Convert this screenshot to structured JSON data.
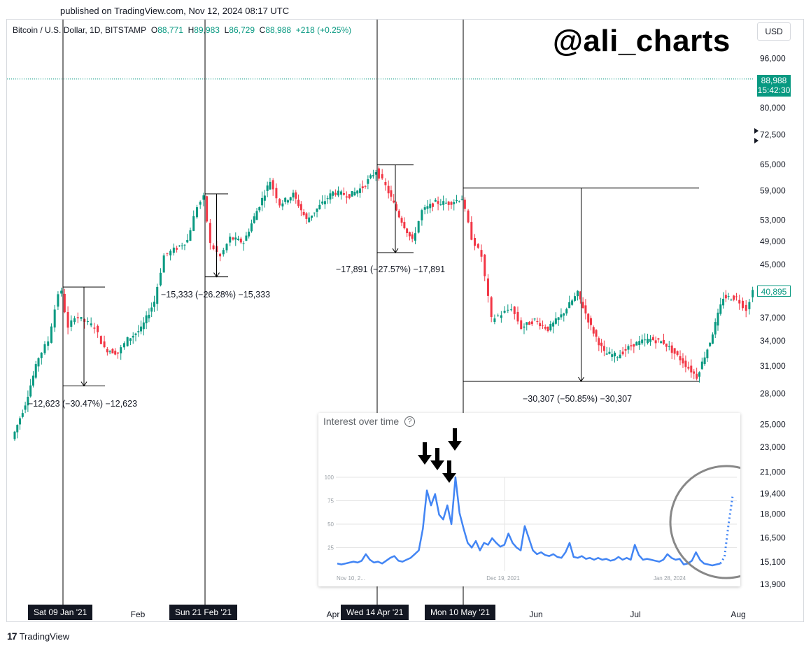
{
  "header": {
    "published": "published on TradingView.com, Nov 12, 2024 08:17 UTC",
    "symbol": "Bitcoin / U.S. Dollar, 1D, BITSTAMP",
    "o_label": "O",
    "o_val": "88,771",
    "h_label": "H",
    "h_val": "89,983",
    "l_label": "L",
    "l_val": "86,729",
    "c_label": "C",
    "c_val": "88,988",
    "change": "+218 (+0.25%)"
  },
  "watermark": "@ali_charts",
  "currency_button": "USD",
  "price_tag": {
    "price": "88,988",
    "time": "15:42:30"
  },
  "last_price_tag": "40,895",
  "date_tags": [
    "Sat 09 Jan '21",
    "Sun 21 Feb '21",
    "Wed 14 Apr '21",
    "Mon 10 May '21"
  ],
  "footer": {
    "logo_text": "TradingView"
  },
  "colors": {
    "up": "#089981",
    "down": "#f23645",
    "trends_line": "#4285f4"
  },
  "chart_data": [
    {
      "type": "candlestick",
      "title": "Bitcoin / U.S. Dollar, 1D, BITSTAMP",
      "y_ticks": [
        "96,000",
        "80,000",
        "72,500",
        "65,000",
        "59,000",
        "53,000",
        "49,000",
        "45,000",
        "37,000",
        "34,000",
        "31,000",
        "28,000",
        "25,000",
        "23,000",
        "21,000",
        "19,400",
        "18,000",
        "16,500",
        "15,100",
        "13,900"
      ],
      "y_tick_values": [
        96000,
        80000,
        72500,
        65000,
        59000,
        53000,
        49000,
        45000,
        37000,
        34000,
        31000,
        28000,
        25000,
        23000,
        21000,
        19400,
        18000,
        16500,
        15100,
        13900
      ],
      "x_ticks": [
        "Feb",
        "Apr",
        "Jun",
        "Jul",
        "Aug"
      ],
      "scale": "log",
      "series_close": [
        {
          "date": "2020-12-25",
          "close": 23700
        },
        {
          "date": "2020-12-29",
          "close": 27000
        },
        {
          "date": "2021-01-02",
          "close": 32000
        },
        {
          "date": "2021-01-05",
          "close": 34000
        },
        {
          "date": "2021-01-08",
          "close": 40500
        },
        {
          "date": "2021-01-09",
          "close": 40600
        },
        {
          "date": "2021-01-11",
          "close": 35500
        },
        {
          "date": "2021-01-13",
          "close": 37300
        },
        {
          "date": "2021-01-16",
          "close": 36500
        },
        {
          "date": "2021-01-19",
          "close": 35800
        },
        {
          "date": "2021-01-22",
          "close": 33000
        },
        {
          "date": "2021-01-26",
          "close": 32500
        },
        {
          "date": "2021-01-29",
          "close": 34200
        },
        {
          "date": "2021-02-02",
          "close": 35500
        },
        {
          "date": "2021-02-06",
          "close": 39300
        },
        {
          "date": "2021-02-09",
          "close": 46500
        },
        {
          "date": "2021-02-12",
          "close": 47500
        },
        {
          "date": "2021-02-16",
          "close": 49200
        },
        {
          "date": "2021-02-19",
          "close": 55800
        },
        {
          "date": "2021-02-21",
          "close": 57500
        },
        {
          "date": "2021-02-23",
          "close": 48500
        },
        {
          "date": "2021-02-26",
          "close": 46300
        },
        {
          "date": "2021-03-01",
          "close": 49600
        },
        {
          "date": "2021-03-05",
          "close": 48800
        },
        {
          "date": "2021-03-09",
          "close": 54800
        },
        {
          "date": "2021-03-13",
          "close": 61200
        },
        {
          "date": "2021-03-16",
          "close": 56200
        },
        {
          "date": "2021-03-20",
          "close": 58200
        },
        {
          "date": "2021-03-24",
          "close": 53000
        },
        {
          "date": "2021-03-28",
          "close": 55800
        },
        {
          "date": "2021-04-01",
          "close": 58700
        },
        {
          "date": "2021-04-06",
          "close": 58000
        },
        {
          "date": "2021-04-10",
          "close": 59800
        },
        {
          "date": "2021-04-14",
          "close": 63500
        },
        {
          "date": "2021-04-17",
          "close": 60000
        },
        {
          "date": "2021-04-21",
          "close": 53800
        },
        {
          "date": "2021-04-25",
          "close": 49000
        },
        {
          "date": "2021-04-28",
          "close": 54800
        },
        {
          "date": "2021-05-02",
          "close": 56500
        },
        {
          "date": "2021-05-06",
          "close": 56400
        },
        {
          "date": "2021-05-10",
          "close": 57400
        },
        {
          "date": "2021-05-13",
          "close": 49700
        },
        {
          "date": "2021-05-16",
          "close": 46400
        },
        {
          "date": "2021-05-19",
          "close": 36800
        },
        {
          "date": "2021-05-22",
          "close": 37500
        },
        {
          "date": "2021-05-25",
          "close": 38400
        },
        {
          "date": "2021-05-28",
          "close": 35700
        },
        {
          "date": "2021-06-01",
          "close": 36700
        },
        {
          "date": "2021-06-05",
          "close": 35500
        },
        {
          "date": "2021-06-09",
          "close": 37300
        },
        {
          "date": "2021-06-14",
          "close": 40500
        },
        {
          "date": "2021-06-18",
          "close": 35800
        },
        {
          "date": "2021-06-22",
          "close": 32500
        },
        {
          "date": "2021-06-26",
          "close": 32200
        },
        {
          "date": "2021-07-01",
          "close": 33600
        },
        {
          "date": "2021-07-06",
          "close": 34200
        },
        {
          "date": "2021-07-10",
          "close": 33800
        },
        {
          "date": "2021-07-15",
          "close": 31800
        },
        {
          "date": "2021-07-20",
          "close": 29800
        },
        {
          "date": "2021-07-24",
          "close": 33900
        },
        {
          "date": "2021-07-28",
          "close": 39900
        },
        {
          "date": "2021-08-01",
          "close": 39800
        },
        {
          "date": "2021-08-04",
          "close": 38200
        },
        {
          "date": "2021-08-06",
          "close": 40895
        }
      ],
      "drawdowns": [
        {
          "label": "−12,623 (−30.47%) −12,623",
          "from_date": "2021-01-09",
          "from_price": 41434,
          "to_price": 28811
        },
        {
          "label": "−15,333 (−26.28%) −15,333",
          "from_date": "2021-02-21",
          "from_price": 58350,
          "to_price": 43017
        },
        {
          "label": "−17,891 (−27.57%) −17,891",
          "from_date": "2021-04-14",
          "from_price": 64899,
          "to_price": 47008
        },
        {
          "label": "−30,307 (−50.85%) −30,307",
          "from_date": "2021-05-10",
          "from_price": 59600,
          "to_price": 29293
        }
      ]
    },
    {
      "type": "line",
      "title": "Interest over time",
      "y_ticks": [
        100,
        75,
        50,
        25
      ],
      "ylim": [
        0,
        100
      ],
      "x_ticks": [
        "Nov 10, 2...",
        "Dec 19, 2021",
        "Jan 28, 2024"
      ],
      "series": [
        {
          "values": [
            8,
            7,
            8,
            9,
            10,
            9,
            11,
            18,
            12,
            9,
            10,
            8,
            11,
            14,
            16,
            11,
            10,
            12,
            14,
            18,
            22,
            45,
            86,
            70,
            82,
            60,
            55,
            70,
            50,
            100,
            62,
            45,
            30,
            25,
            32,
            22,
            30,
            28,
            35,
            30,
            26,
            28,
            40,
            30,
            25,
            22,
            48,
            35,
            22,
            18,
            20,
            17,
            16,
            18,
            15,
            14,
            20,
            30,
            15,
            14,
            16,
            13,
            14,
            12,
            14,
            12,
            13,
            11,
            12,
            15,
            12,
            14,
            12,
            28,
            17,
            12,
            13,
            12,
            11,
            10,
            12,
            18,
            14,
            12,
            13,
            7,
            8,
            11,
            20,
            12,
            8,
            7,
            6,
            7,
            8,
            15,
            50,
            80
          ]
        }
      ]
    }
  ]
}
